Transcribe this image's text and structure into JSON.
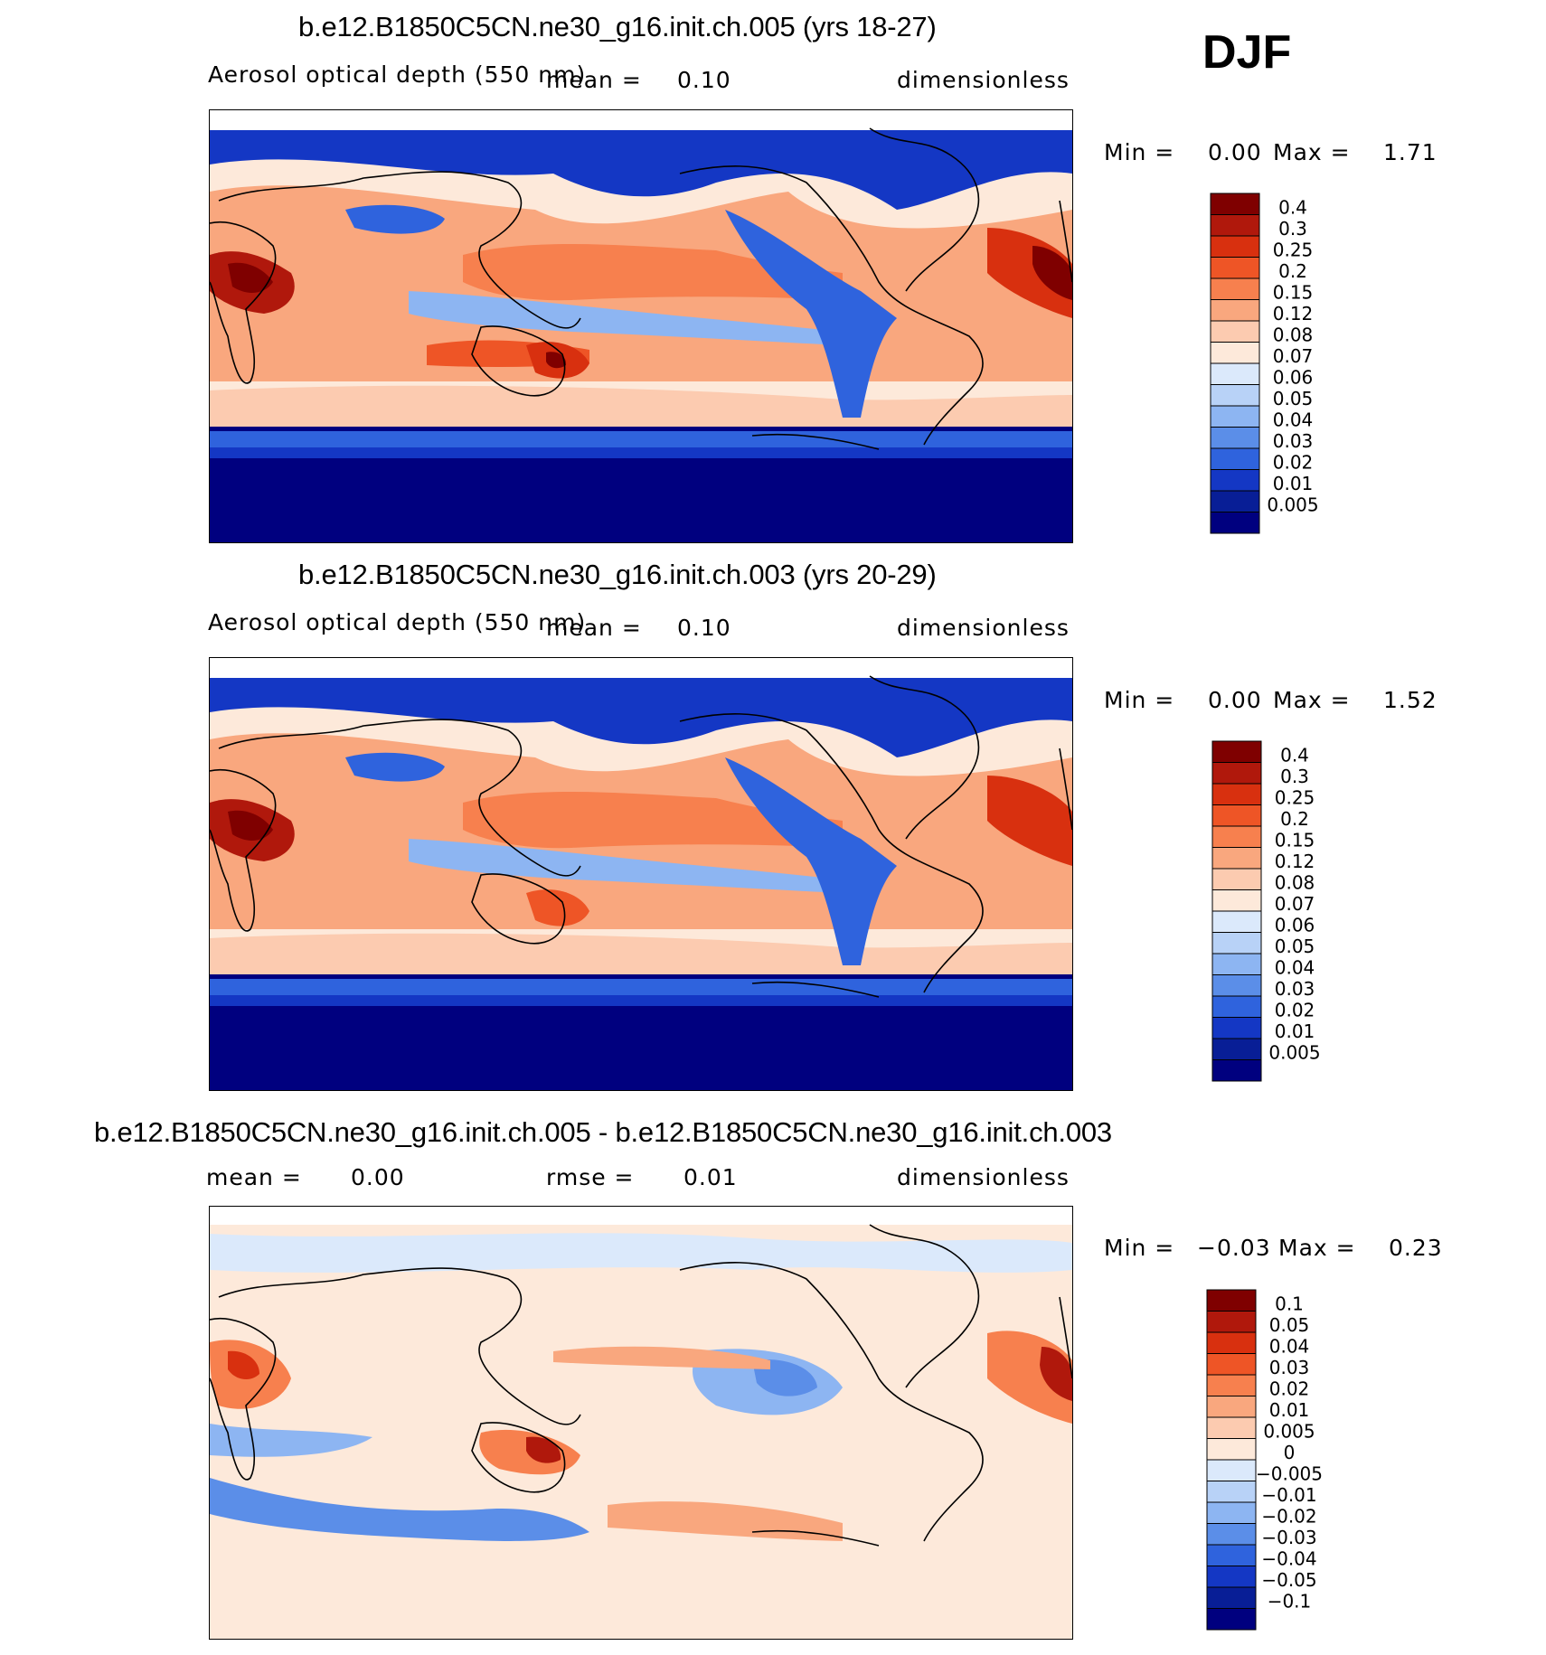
{
  "season": "DJF",
  "panels": [
    {
      "id": "top",
      "title": "b.e12.B1850C5CN.ne30_g16.init.ch.005 (yrs 18-27)",
      "variable": "Aerosol optical depth (550 nm)",
      "mean_label": "mean =",
      "mean_value": "0.10",
      "units": "dimensionless",
      "min_label": "Min =",
      "min_value": "0.00",
      "max_label": "Max =",
      "max_value": "1.71"
    },
    {
      "id": "middle",
      "title": "b.e12.B1850C5CN.ne30_g16.init.ch.003 (yrs 20-29)",
      "variable": "Aerosol optical depth (550 nm)",
      "mean_label": "mean =",
      "mean_value": "0.10",
      "units": "dimensionless",
      "min_label": "Min =",
      "min_value": "0.00",
      "max_label": "Max =",
      "max_value": "1.52"
    },
    {
      "id": "bottom",
      "title": "b.e12.B1850C5CN.ne30_g16.init.ch.005 - b.e12.B1850C5CN.ne30_g16.init.ch.003",
      "mean_label": "mean =",
      "mean_value": "0.00",
      "rmse_label": "rmse =",
      "rmse_value": "0.01",
      "units": "dimensionless",
      "min_label": "Min =",
      "min_value": "−0.03",
      "max_label": "Max =",
      "max_value": "0.23"
    }
  ],
  "chart_data": [
    {
      "type": "heatmap",
      "title": "b.e12.B1850C5CN.ne30_g16.init.ch.005 (yrs 18-27)",
      "field": "Aerosol optical depth (550 nm)",
      "projection": "cylindrical equidistant, Pacific-centered",
      "levels": [
        "0.4",
        "0.3",
        "0.25",
        "0.2",
        "0.15",
        "0.12",
        "0.08",
        "0.07",
        "0.06",
        "0.05",
        "0.04",
        "0.03",
        "0.02",
        "0.01",
        "0.005"
      ],
      "colors": [
        "#7f0000",
        "#b0180c",
        "#d8300f",
        "#ee5526",
        "#f7804e",
        "#f9a77e",
        "#fccbb0",
        "#fde9da",
        "#dbe9fb",
        "#b8d2f7",
        "#8db5f2",
        "#5b8ee8",
        "#2f63dd",
        "#1437c4",
        "#081e96",
        "#00007f"
      ],
      "mean": 0.1,
      "min": 0.0,
      "max": 1.71
    },
    {
      "type": "heatmap",
      "title": "b.e12.B1850C5CN.ne30_g16.init.ch.003 (yrs 20-29)",
      "field": "Aerosol optical depth (550 nm)",
      "projection": "cylindrical equidistant, Pacific-centered",
      "levels": [
        "0.4",
        "0.3",
        "0.25",
        "0.2",
        "0.15",
        "0.12",
        "0.08",
        "0.07",
        "0.06",
        "0.05",
        "0.04",
        "0.03",
        "0.02",
        "0.01",
        "0.005"
      ],
      "colors": [
        "#7f0000",
        "#b0180c",
        "#d8300f",
        "#ee5526",
        "#f7804e",
        "#f9a77e",
        "#fccbb0",
        "#fde9da",
        "#dbe9fb",
        "#b8d2f7",
        "#8db5f2",
        "#5b8ee8",
        "#2f63dd",
        "#1437c4",
        "#081e96",
        "#00007f"
      ],
      "mean": 0.1,
      "min": 0.0,
      "max": 1.52
    },
    {
      "type": "heatmap",
      "title": "b.e12.B1850C5CN.ne30_g16.init.ch.005 - b.e12.B1850C5CN.ne30_g16.init.ch.003",
      "field": "difference",
      "levels": [
        "0.1",
        "0.05",
        "0.04",
        "0.03",
        "0.02",
        "0.01",
        "0.005",
        "0",
        "−0.005",
        "−0.01",
        "−0.02",
        "−0.03",
        "−0.04",
        "−0.05",
        "−0.1"
      ],
      "colors": [
        "#7f0000",
        "#b0180c",
        "#d8300f",
        "#ee5526",
        "#f7804e",
        "#f9a77e",
        "#fccbb0",
        "#fde9da",
        "#dbe9fb",
        "#b8d2f7",
        "#8db5f2",
        "#5b8ee8",
        "#2f63dd",
        "#1437c4",
        "#081e96",
        "#00007f"
      ],
      "mean": 0.0,
      "rmse": 0.01,
      "min": -0.03,
      "max": 0.23
    }
  ]
}
